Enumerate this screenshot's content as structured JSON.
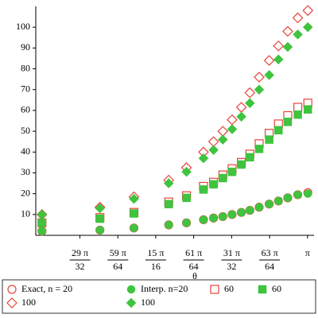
{
  "chart_data": {
    "type": "scatter",
    "x_label": "θ",
    "xlim": [
      2.79,
      3.15
    ],
    "ylim": [
      0,
      110
    ],
    "xticks": [
      {
        "value": 2.8471,
        "label": "29 π",
        "denominator": "32"
      },
      {
        "value": 2.8962,
        "label": "59 π",
        "denominator": "64"
      },
      {
        "value": 2.9452,
        "label": "15 π",
        "denominator": "16"
      },
      {
        "value": 2.9943,
        "label": "61 π",
        "denominator": "64"
      },
      {
        "value": 3.0434,
        "label": "31 π",
        "denominator": "32"
      },
      {
        "value": 3.0925,
        "label": "63 π",
        "denominator": "64"
      },
      {
        "value": 3.1416,
        "label": "π"
      }
    ],
    "yticks": [
      10,
      20,
      30,
      40,
      50,
      60,
      70,
      80,
      90,
      100
    ],
    "x": [
      2.798,
      2.873,
      2.917,
      2.962,
      2.985,
      3.007,
      3.02,
      3.032,
      3.044,
      3.056,
      3.067,
      3.079,
      3.092,
      3.104,
      3.116,
      3.129,
      3.142
    ],
    "series": [
      {
        "name": "Exact, n = 20",
        "color": "#e8433b",
        "marker": "circle",
        "filled": false,
        "values": [
          2,
          2.5,
          3.5,
          5,
          6,
          7.5,
          8.3,
          9,
          10,
          11,
          12,
          13.5,
          15,
          16.5,
          18,
          19.5,
          20.5
        ]
      },
      {
        "name": "Interp. n=20",
        "color": "#3ec43e",
        "marker": "circle",
        "filled": true,
        "values": [
          2,
          2.5,
          3.5,
          5,
          6,
          7.5,
          8.3,
          9,
          10,
          11,
          12,
          13.5,
          15,
          16.5,
          18,
          19.5,
          20
        ]
      },
      {
        "name": "60",
        "color": "#e8433b",
        "marker": "square",
        "filled": false,
        "values": [
          6,
          8.5,
          11,
          16,
          19,
          23.5,
          25.5,
          29,
          32,
          35,
          39,
          44,
          49,
          53.5,
          57.5,
          61.5,
          63.5
        ]
      },
      {
        "name": "60",
        "color": "#3ec43e",
        "marker": "square",
        "filled": true,
        "values": [
          6,
          8,
          10.5,
          15,
          18,
          22,
          24.5,
          27.5,
          30.5,
          34,
          37.5,
          41.5,
          46,
          50.5,
          54.5,
          58,
          60.5
        ]
      },
      {
        "name": "100",
        "color": "#e8433b",
        "marker": "diamond",
        "filled": false,
        "values": [
          10,
          13.5,
          18.5,
          26.5,
          32.5,
          40,
          45,
          50,
          55.5,
          61.5,
          68.5,
          76,
          84,
          91,
          98,
          104.5,
          108
        ]
      },
      {
        "name": "100",
        "color": "#3ec43e",
        "marker": "diamond",
        "filled": true,
        "values": [
          10,
          13,
          17.5,
          25,
          30.5,
          37,
          41,
          46,
          51,
          57,
          63.5,
          70,
          77,
          84.5,
          90.5,
          96.5,
          100
        ]
      }
    ]
  }
}
